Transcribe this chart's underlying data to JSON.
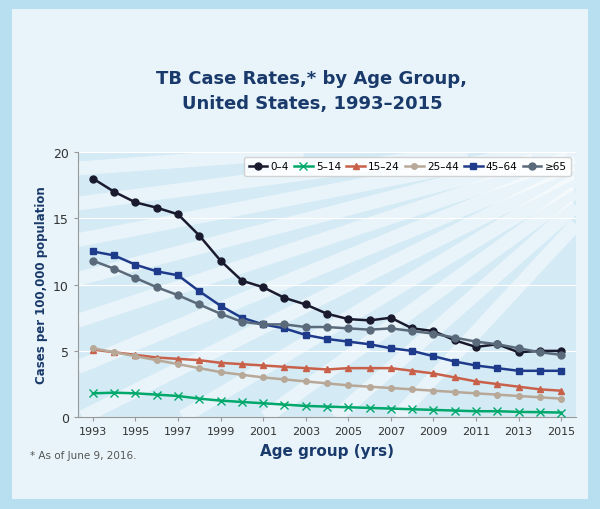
{
  "title": "TB Case Rates,* by Age Group,\nUnited States, 1993–2015",
  "xlabel": "Age group (yrs)",
  "ylabel": "Cases per 100,000 population",
  "footnote": "* As of June 9, 2016.",
  "years": [
    1993,
    1994,
    1995,
    1996,
    1997,
    1998,
    1999,
    2000,
    2001,
    2002,
    2003,
    2004,
    2005,
    2006,
    2007,
    2008,
    2009,
    2010,
    2011,
    2012,
    2013,
    2014,
    2015
  ],
  "series_order": [
    "0–4",
    "5–14",
    "15–24",
    "25–44",
    "45–64",
    "≥65"
  ],
  "series": {
    "0–4": {
      "color": "#1a1a2e",
      "marker": "o",
      "markersize": 5,
      "linewidth": 1.8,
      "values": [
        18.0,
        17.0,
        16.2,
        15.8,
        15.3,
        13.7,
        11.8,
        10.3,
        9.8,
        9.0,
        8.5,
        7.8,
        7.4,
        7.3,
        7.5,
        6.7,
        6.5,
        5.8,
        5.3,
        5.5,
        4.9,
        5.0,
        5.0
      ]
    },
    "5–14": {
      "color": "#00a86b",
      "marker": "x",
      "markersize": 6,
      "linewidth": 1.8,
      "values": [
        1.8,
        1.85,
        1.8,
        1.7,
        1.6,
        1.4,
        1.25,
        1.15,
        1.05,
        0.95,
        0.85,
        0.8,
        0.75,
        0.7,
        0.65,
        0.6,
        0.55,
        0.5,
        0.45,
        0.45,
        0.4,
        0.38,
        0.35
      ]
    },
    "15–24": {
      "color": "#c8604a",
      "marker": "^",
      "markersize": 5,
      "linewidth": 1.8,
      "values": [
        5.1,
        4.9,
        4.7,
        4.5,
        4.4,
        4.3,
        4.1,
        4.0,
        3.9,
        3.8,
        3.7,
        3.6,
        3.7,
        3.7,
        3.7,
        3.5,
        3.3,
        3.0,
        2.7,
        2.5,
        2.3,
        2.1,
        2.0
      ]
    },
    "25–44": {
      "color": "#b8a898",
      "marker": "o",
      "markersize": 4,
      "linewidth": 1.8,
      "values": [
        5.2,
        4.9,
        4.6,
        4.3,
        4.0,
        3.7,
        3.4,
        3.2,
        3.0,
        2.85,
        2.7,
        2.55,
        2.4,
        2.3,
        2.2,
        2.1,
        2.0,
        1.9,
        1.8,
        1.7,
        1.6,
        1.5,
        1.4
      ]
    },
    "45–64": {
      "color": "#1e3a8a",
      "marker": "s",
      "markersize": 5,
      "linewidth": 1.8,
      "values": [
        12.5,
        12.2,
        11.5,
        11.0,
        10.7,
        9.5,
        8.4,
        7.5,
        7.0,
        6.7,
        6.2,
        5.9,
        5.7,
        5.5,
        5.2,
        5.0,
        4.6,
        4.2,
        3.9,
        3.7,
        3.5,
        3.5,
        3.5
      ]
    },
    "≥65": {
      "color": "#5a6a7a",
      "marker": "o",
      "markersize": 5,
      "linewidth": 1.8,
      "values": [
        11.8,
        11.2,
        10.5,
        9.8,
        9.2,
        8.5,
        7.8,
        7.2,
        7.0,
        7.0,
        6.8,
        6.8,
        6.7,
        6.6,
        6.7,
        6.5,
        6.3,
        6.0,
        5.7,
        5.5,
        5.2,
        4.9,
        4.7
      ]
    }
  },
  "ylim": [
    0,
    20
  ],
  "yticks": [
    0,
    5,
    10,
    15,
    20
  ],
  "xticks": [
    1993,
    1995,
    1997,
    1999,
    2001,
    2003,
    2005,
    2007,
    2009,
    2011,
    2013,
    2015
  ],
  "outer_bg": "#b8dff0",
  "card_bg": "#e8f4fa",
  "plot_bg": "#d4eaf5",
  "title_color": "#1a3a6b",
  "axis_label_color": "#1a3a6b",
  "tick_color": "#333333",
  "ray_color": "#ffffff",
  "ray_alpha": 0.5
}
